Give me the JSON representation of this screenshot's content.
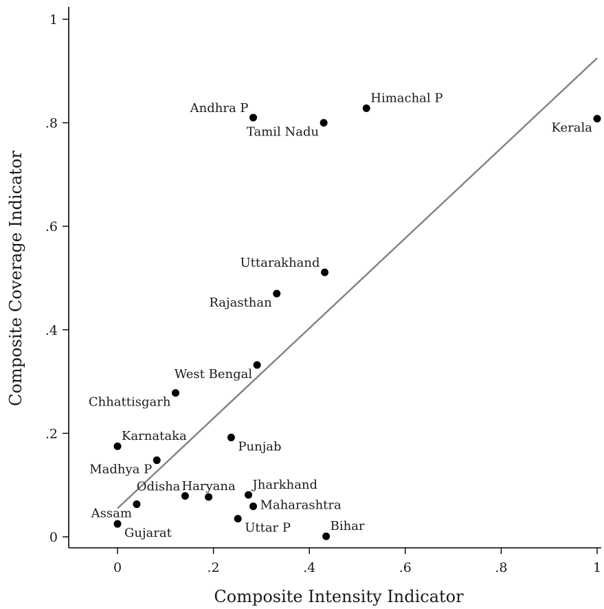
{
  "chart_data": {
    "type": "scatter",
    "title": "",
    "xlabel": "Composite Intensity Indicator",
    "ylabel": "Composite Coverage Indicator",
    "xlim": [
      -0.1,
      1.0
    ],
    "ylim": [
      -0.02,
      1.02
    ],
    "x_ticks": [
      0,
      0.2,
      0.4,
      0.6,
      0.8,
      1
    ],
    "x_tick_labels": [
      "0",
      ".2",
      ".4",
      ".6",
      ".8",
      "1"
    ],
    "y_ticks": [
      0,
      0.2,
      0.4,
      0.6,
      0.8,
      1
    ],
    "y_tick_labels": [
      "0",
      ".2",
      ".4",
      ".6",
      ".8",
      "1"
    ],
    "grid": false,
    "fit_line": {
      "x": [
        0,
        1
      ],
      "y": [
        0.055,
        0.925
      ]
    },
    "points": [
      {
        "label": "Andhra P",
        "x": 0.283,
        "y": 0.81,
        "label_pos": "upper-left"
      },
      {
        "label": "Tamil Nadu",
        "x": 0.43,
        "y": 0.8,
        "label_pos": "lower-left"
      },
      {
        "label": "Himachal P",
        "x": 0.519,
        "y": 0.828,
        "label_pos": "upper-right"
      },
      {
        "label": "Kerala",
        "x": 1.0,
        "y": 0.808,
        "label_pos": "lower-left"
      },
      {
        "label": "Uttarakhand",
        "x": 0.432,
        "y": 0.511,
        "label_pos": "upper-left"
      },
      {
        "label": "Rajasthan",
        "x": 0.332,
        "y": 0.47,
        "label_pos": "lower-left"
      },
      {
        "label": "West Bengal",
        "x": 0.291,
        "y": 0.332,
        "label_pos": "lower-left"
      },
      {
        "label": "Chhattisgarh",
        "x": 0.121,
        "y": 0.278,
        "label_pos": "lower-left"
      },
      {
        "label": "Karnataka",
        "x": 0.0,
        "y": 0.175,
        "label_pos": "upper-right"
      },
      {
        "label": "Punjab",
        "x": 0.237,
        "y": 0.192,
        "label_pos": "lower-right"
      },
      {
        "label": "Madhya P",
        "x": 0.082,
        "y": 0.148,
        "label_pos": "lower-left"
      },
      {
        "label": "Odisha",
        "x": 0.141,
        "y": 0.079,
        "label_pos": "upper-left"
      },
      {
        "label": "Haryana",
        "x": 0.19,
        "y": 0.077,
        "label_pos": "upper-center"
      },
      {
        "label": "Jharkhand",
        "x": 0.273,
        "y": 0.081,
        "label_pos": "upper-right"
      },
      {
        "label": "Maharashtra",
        "x": 0.283,
        "y": 0.059,
        "label_pos": "right"
      },
      {
        "label": "Assam",
        "x": 0.04,
        "y": 0.063,
        "label_pos": "lower-left"
      },
      {
        "label": "Gujarat",
        "x": 0.0,
        "y": 0.025,
        "label_pos": "lower-right"
      },
      {
        "label": "Uttar P",
        "x": 0.251,
        "y": 0.035,
        "label_pos": "lower-right"
      },
      {
        "label": "Bihar",
        "x": 0.435,
        "y": 0.001,
        "label_pos": "upper-right"
      }
    ]
  }
}
